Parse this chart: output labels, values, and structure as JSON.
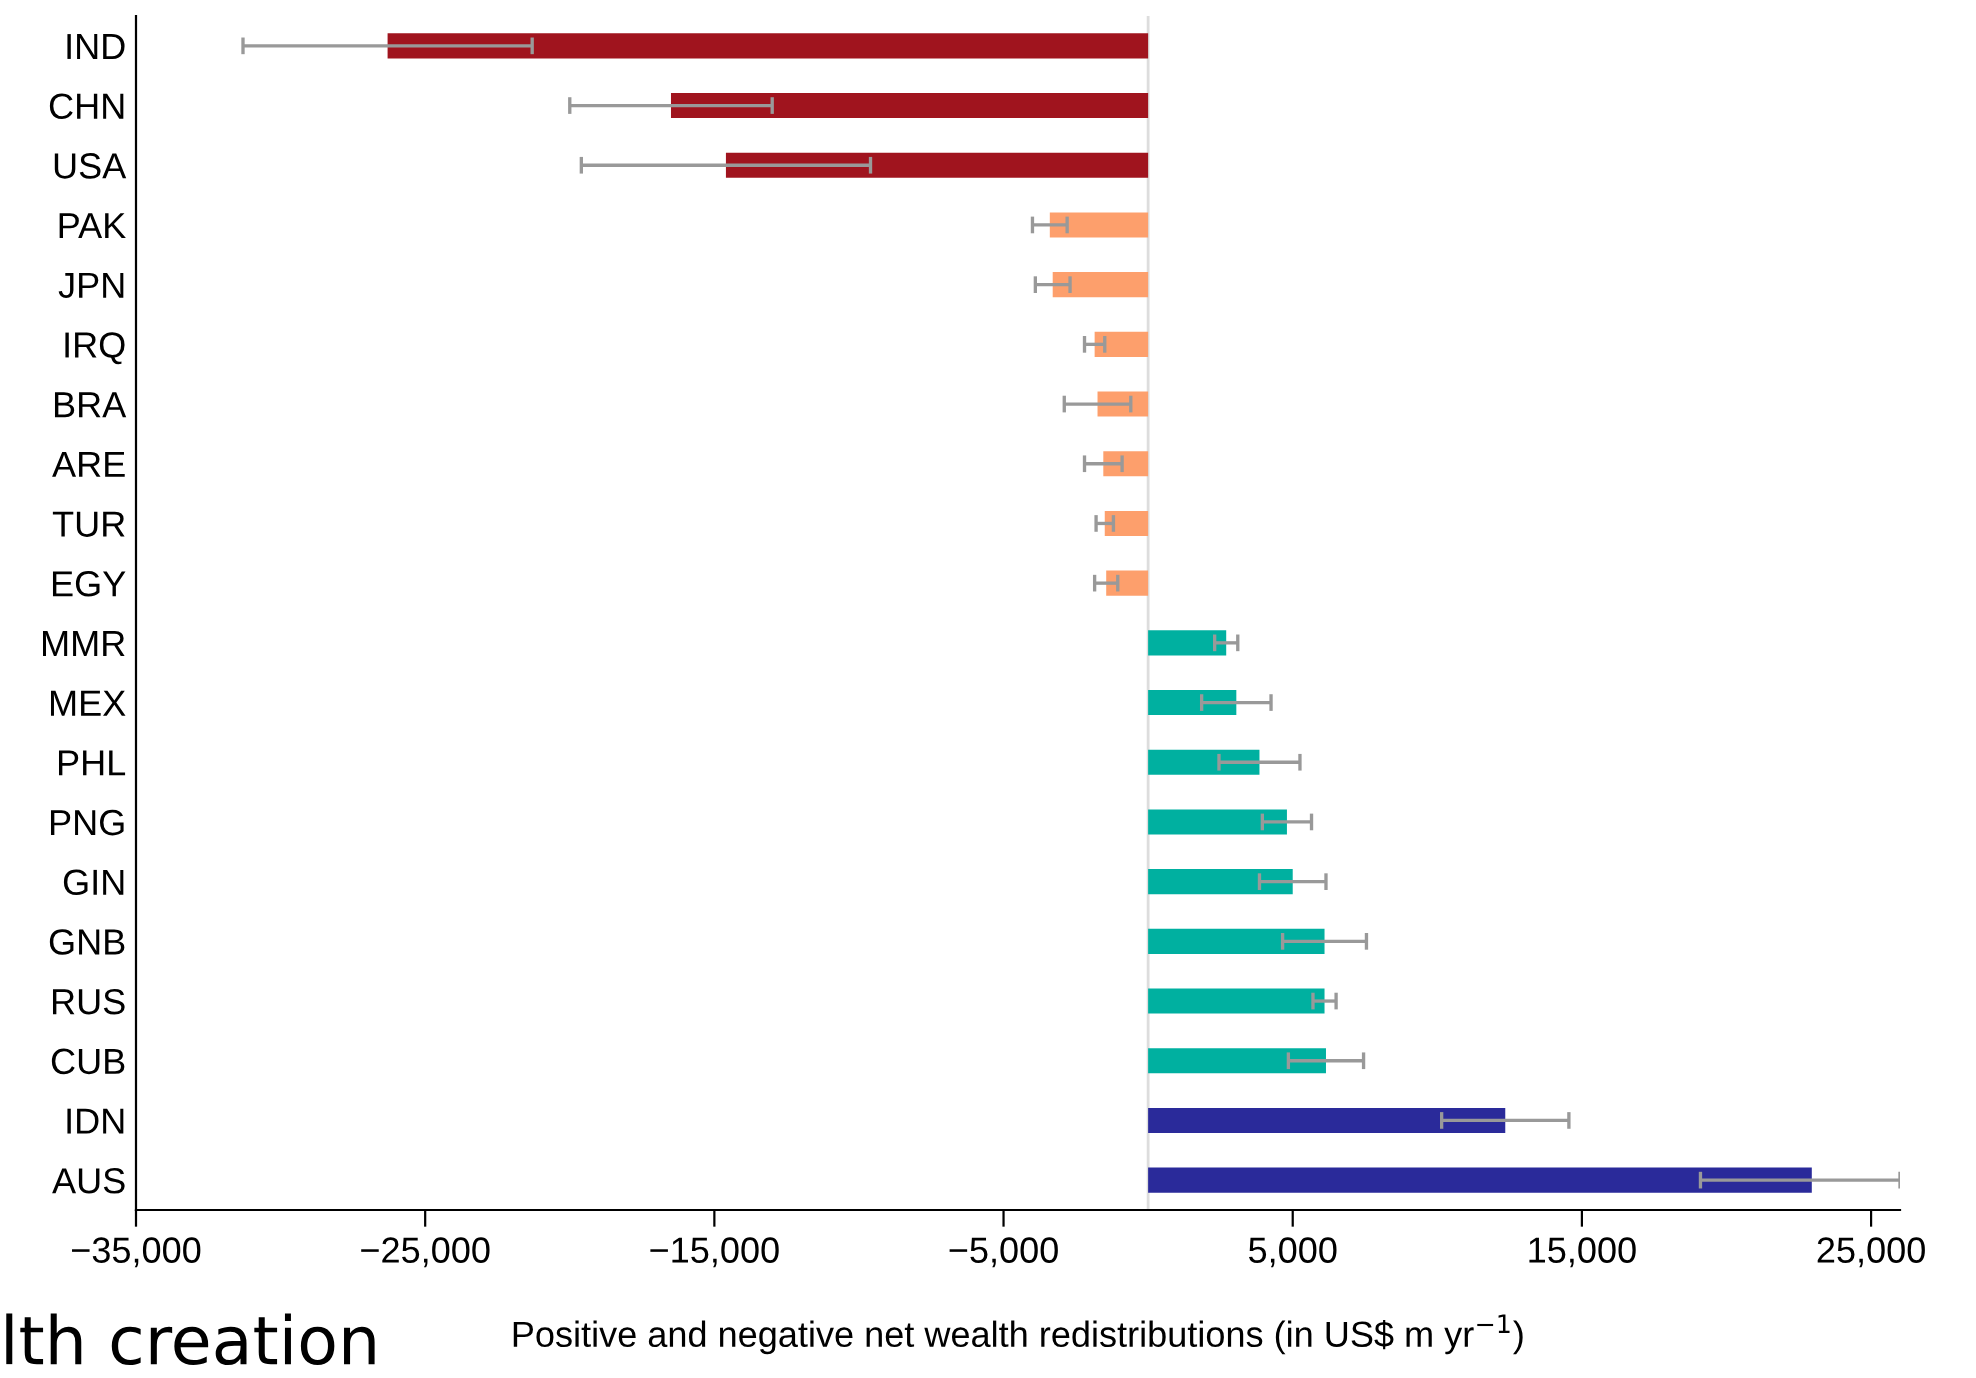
{
  "chart_data": {
    "type": "bar",
    "orientation": "horizontal",
    "xlabel": "Positive and negative net wealth redistributions (in US$ m yr$^{−1}$)",
    "categories": [
      "IND",
      "CHN",
      "USA",
      "PAK",
      "JPN",
      "IRQ",
      "BRA",
      "ARE",
      "TUR",
      "EGY",
      "MMR",
      "MEX",
      "PHL",
      "PNG",
      "GIN",
      "GNB",
      "RUS",
      "CUB",
      "IDN",
      "AUS"
    ],
    "values": [
      -26300,
      -16500,
      -14600,
      -3400,
      -3300,
      -1850,
      -1750,
      -1550,
      -1500,
      -1450,
      2700,
      3050,
      3850,
      4800,
      5000,
      6100,
      6100,
      6150,
      12350,
      22950
    ],
    "errors": [
      5000,
      3500,
      5000,
      600,
      600,
      350,
      1150,
      650,
      300,
      400,
      400,
      1200,
      1400,
      850,
      1150,
      1450,
      400,
      1300,
      2200,
      [
        19100,
        26000
      ]
    ],
    "colors": [
      "#a0141e",
      "#a0141e",
      "#a0141e",
      "#fd9f6c",
      "#fd9f6c",
      "#fd9f6c",
      "#fd9f6c",
      "#fd9f6c",
      "#fd9f6c",
      "#fd9f6c",
      "#00b0a0",
      "#00b0a0",
      "#00b0a0",
      "#00b0a0",
      "#00b0a0",
      "#00b0a0",
      "#00b0a0",
      "#00b0a0",
      "#2a2a9a",
      "#2a2a9a"
    ],
    "xlim": [
      -35000,
      26000
    ],
    "xticks": [
      {
        "value": -35000,
        "label": "−35,000"
      },
      {
        "value": -25000,
        "label": "−25,000"
      },
      {
        "value": -15000,
        "label": "−15,000"
      },
      {
        "value": -5000,
        "label": "−5,000"
      },
      {
        "value": 5000,
        "label": "5,000"
      },
      {
        "value": 15000,
        "label": "15,000"
      },
      {
        "value": 25000,
        "label": "25,000"
      }
    ],
    "ref_lines": [
      {
        "axis": "x",
        "value": 0,
        "color": "#dddddd"
      }
    ],
    "grid": false,
    "annotations": [
      "lth creation"
    ]
  }
}
